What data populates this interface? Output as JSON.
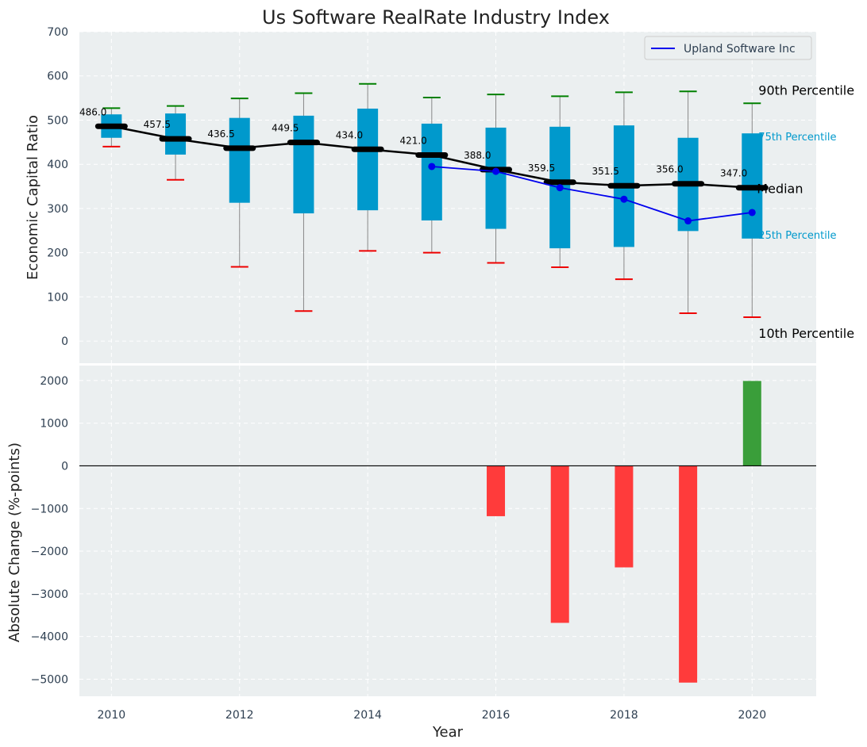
{
  "chart_data": {
    "type": "box",
    "title": "Us Software RealRate Industry Index",
    "xlabel": "Year",
    "x": [
      2010,
      2011,
      2012,
      2013,
      2014,
      2015,
      2016,
      2017,
      2018,
      2019,
      2020
    ],
    "xticks": [
      2010,
      2012,
      2014,
      2016,
      2018,
      2020
    ],
    "xlim": [
      2009.5,
      2021
    ],
    "top": {
      "ylabel": "Economic Capital Ratio",
      "ylim": [
        -50,
        700
      ],
      "yticks": [
        0,
        100,
        200,
        300,
        400,
        500,
        600,
        700
      ],
      "p10": [
        440,
        365,
        168,
        68,
        204,
        200,
        177,
        167,
        140,
        63,
        54
      ],
      "p25": [
        460,
        422,
        313,
        289,
        296,
        273,
        254,
        210,
        213,
        249,
        232
      ],
      "median": [
        486.0,
        457.5,
        436.5,
        449.5,
        434.0,
        421.0,
        388.0,
        359.5,
        351.5,
        356.0,
        347.0
      ],
      "median_labels": [
        "486.0",
        "457.5",
        "436.5",
        "449.5",
        "434.0",
        "421.0",
        "388.0",
        "359.5",
        "351.5",
        "356.0",
        "347.0"
      ],
      "p75": [
        513,
        515,
        505,
        510,
        526,
        492,
        483,
        485,
        488,
        460,
        470
      ],
      "p90": [
        527,
        532,
        549,
        561,
        582,
        551,
        558,
        554,
        563,
        565,
        538
      ],
      "company": {
        "name": "Upland Software Inc",
        "x": [
          2015,
          2016,
          2017,
          2018,
          2019,
          2020
        ],
        "values": [
          395,
          384,
          347,
          321,
          272,
          291
        ]
      },
      "legend": {
        "placement": "top-right",
        "entries": [
          "Upland Software Inc"
        ]
      },
      "annotations": {
        "p90": "90th Percentile",
        "p75": "75th Percentile",
        "median": "Median",
        "p25": "25th Percentile",
        "p10": "10th Percentile"
      }
    },
    "bottom": {
      "type": "bar",
      "ylabel": "Absolute Change (%-points)",
      "ylim": [
        -5400,
        2350
      ],
      "yticks": [
        2000,
        1000,
        0,
        -1000,
        -2000,
        -3000,
        -4000,
        -5000
      ],
      "ytick_labels": [
        "2000",
        "1000",
        "0",
        "−1000",
        "−2000",
        "−3000",
        "−4000",
        "−5000"
      ],
      "x": [
        2016,
        2017,
        2018,
        2019,
        2020
      ],
      "values": [
        -1180,
        -3680,
        -2380,
        -5080,
        1990
      ]
    },
    "colors": {
      "box": "#0099cc",
      "median": "#000000",
      "company": "#0000ee",
      "p90_cap": "#008000",
      "p10_cap": "#ee0000",
      "bar_negative": "#ff3b3b",
      "bar_positive": "#3a9e3a",
      "panel_bg": "#ebeff0",
      "text": "#2d3e50"
    }
  }
}
